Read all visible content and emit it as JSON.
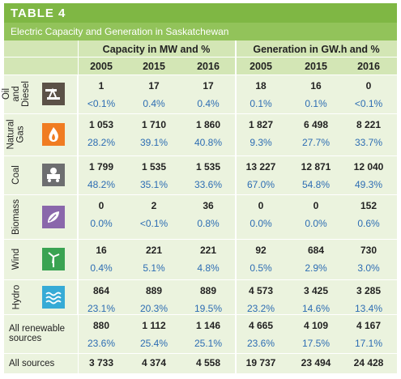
{
  "header": {
    "title": "TABLE 4",
    "subtitle": "Electric Capacity and Generation in Saskatchewan"
  },
  "table": {
    "groups": [
      "Capacity in MW and %",
      "Generation in GW.h and %"
    ],
    "years": [
      "2005",
      "2015",
      "2016",
      "2005",
      "2015",
      "2016"
    ],
    "rows": [
      {
        "label": "Oil and Diesel",
        "values": [
          "1",
          "17",
          "17",
          "18",
          "16",
          "0"
        ],
        "percents": [
          "<0.1%",
          "0.4%",
          "0.4%",
          "0.1%",
          "0.1%",
          "<0.1%"
        ]
      },
      {
        "label": "Natural Gas",
        "values": [
          "1 053",
          "1 710",
          "1 860",
          "1 827",
          "6 498",
          "8 221"
        ],
        "percents": [
          "28.2%",
          "39.1%",
          "40.8%",
          "9.3%",
          "27.7%",
          "33.7%"
        ]
      },
      {
        "label": "Coal",
        "values": [
          "1 799",
          "1 535",
          "1 535",
          "13 227",
          "12 871",
          "12 040"
        ],
        "percents": [
          "48.2%",
          "35.1%",
          "33.6%",
          "67.0%",
          "54.8%",
          "49.3%"
        ]
      },
      {
        "label": "Biomass",
        "values": [
          "0",
          "2",
          "36",
          "0",
          "0",
          "152"
        ],
        "percents": [
          "0.0%",
          "<0.1%",
          "0.8%",
          "0.0%",
          "0.0%",
          "0.6%"
        ]
      },
      {
        "label": "Wind",
        "values": [
          "16",
          "221",
          "221",
          "92",
          "684",
          "730"
        ],
        "percents": [
          "0.4%",
          "5.1%",
          "4.8%",
          "0.5%",
          "2.9%",
          "3.0%"
        ]
      },
      {
        "label": "Hydro",
        "values": [
          "864",
          "889",
          "889",
          "4 573",
          "3 425",
          "3 285"
        ],
        "percents": [
          "23.1%",
          "20.3%",
          "19.5%",
          "23.2%",
          "14.6%",
          "13.4%"
        ]
      },
      {
        "label": "All renewable sources",
        "values": [
          "880",
          "1 112",
          "1 146",
          "4 665",
          "4 109",
          "4 167"
        ],
        "percents": [
          "23.6%",
          "25.4%",
          "25.1%",
          "23.6%",
          "17.5%",
          "17.1%"
        ]
      },
      {
        "label": "All sources",
        "values": [
          "3 733",
          "4 374",
          "4 558",
          "19 737",
          "23 494",
          "24 428"
        ]
      }
    ]
  }
}
